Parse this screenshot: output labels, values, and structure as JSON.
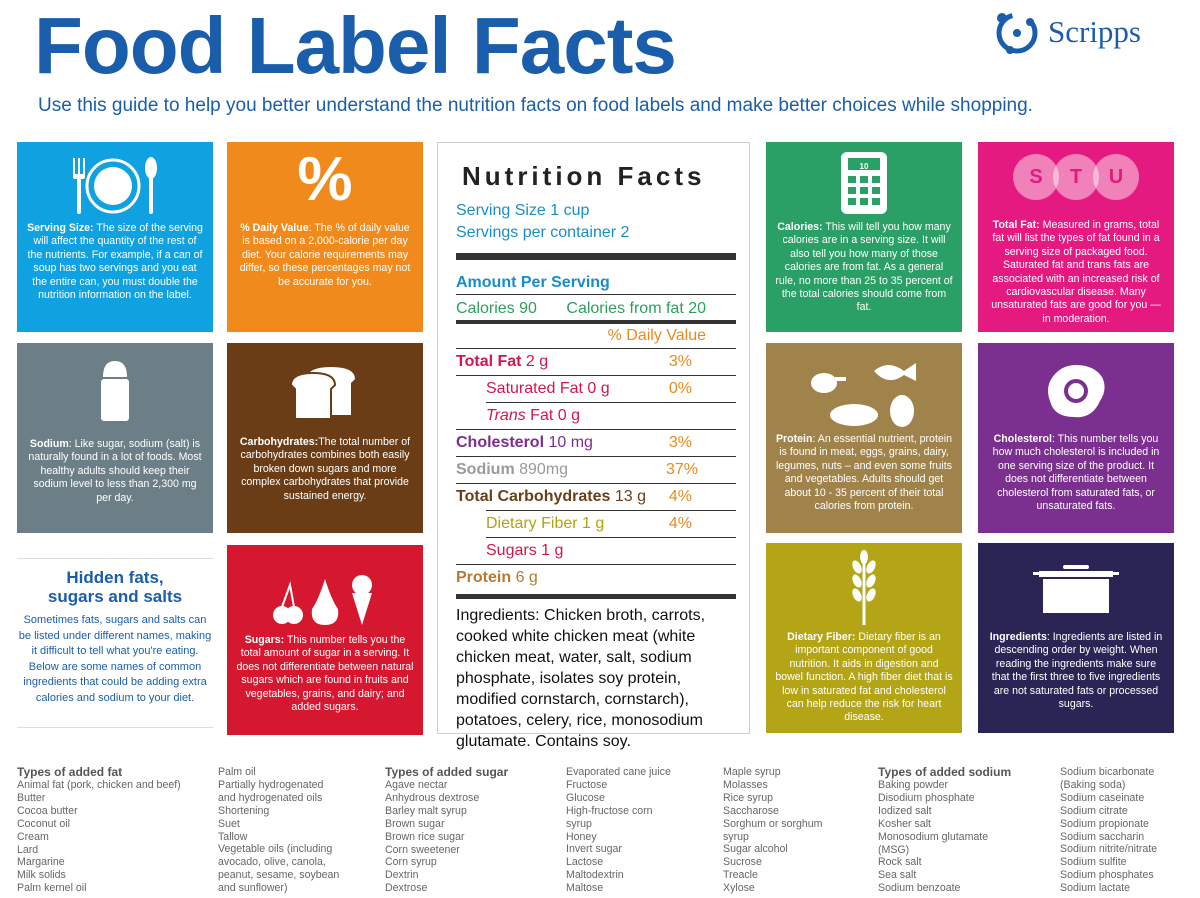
{
  "header": {
    "title": "Food Label Facts",
    "subtitle": "Use this guide to help you better understand the nutrition facts on food labels and make better choices while shopping.",
    "logo_text": "Scripps"
  },
  "colors": {
    "brand_blue": "#1a5eab",
    "serving": "#0fa1e0",
    "daily_value": "#f18a1c",
    "sodium": "#6d7f86",
    "carbs": "#6a3d16",
    "sugars": "#d5182f",
    "calories": "#2aa066",
    "total_fat": "#e41a80",
    "protein": "#a0834a",
    "cholesterol": "#7b2f8e",
    "fiber": "#b3a516",
    "ingredients": "#2b2556"
  },
  "cards": {
    "serving": {
      "icon": "plate-fork-spoon-icon",
      "heading": "Serving Size:",
      "body": " The size of the serving will affect the quantity of the rest of the nutrients. For example, if a can of soup has two servings and you eat the entire can, you must double the nutrition information on the label."
    },
    "daily_value": {
      "icon": "percent-icon",
      "icon_text": "%",
      "heading": "% Daily Value",
      "body": ": The % of daily value is based on a 2,000-calorie per day diet. Your calorie requirements may differ, so these percentages may not be accurate for you."
    },
    "sodium": {
      "icon": "salt-shaker-icon",
      "heading": "Sodium",
      "body": ": Like sugar, sodium (salt) is naturally found in a lot of foods. Most healthy adults should keep their sodium level to less than 2,300 mg per day."
    },
    "carbs": {
      "icon": "bread-icon",
      "heading": "Carbohydrates:",
      "body": "The total number of carbohydrates combines both easily broken down sugars and more complex carbohydrates that provide sustained energy."
    },
    "sugars": {
      "icon": "fruit-icecream-icon",
      "heading": "Sugars:",
      "body": " This number tells you the total amount of sugar in a serving. It does not differentiate between natural sugars which are found in fruits and vegetables, grains, and dairy; and added sugars."
    },
    "calories": {
      "icon": "calculator-icon",
      "icon_text": "10",
      "heading": "Calories:",
      "body": " This will tell you how many calories are in a serving size. It will also tell you how many of those calories are from fat. As a general rule, no more than 25 to 35 percent of the total calories should come from fat."
    },
    "total_fat": {
      "icon": "stu-circles-icon",
      "letters": [
        "S",
        "T",
        "U"
      ],
      "heading": "Total Fat:",
      "body": " Measured in grams, total fat will list the types of fat found in a serving size of packaged food. Saturated fat and trans fats are associated with an increased risk of cardiovascular disease. Many unsaturated fats are good for you — in moderation."
    },
    "protein": {
      "icon": "meat-fish-egg-icon",
      "heading": "Protein",
      "body": ": An essential nutrient, protein is found in meat, eggs, grains, dairy, legumes, nuts – and even some fruits and vegetables. Adults should get about 10 - 35 percent of their total calories from protein."
    },
    "cholesterol": {
      "icon": "fried-egg-icon",
      "heading": "Cholesterol",
      "body": ": This number tells you how much cholesterol is included in one serving size of the product. It does not differentiate between cholesterol from saturated fats, or unsaturated fats."
    },
    "fiber": {
      "icon": "wheat-icon",
      "heading": "Dietary Fiber:",
      "body": " Dietary fiber is an important component of good nutrition. It aids in digestion and bowel function. A high fiber diet that is low in saturated fat and cholesterol can help reduce the risk for heart disease."
    },
    "ingredients": {
      "icon": "cooking-pot-icon",
      "heading": "Ingredients",
      "body": ": Ingredients are listed in descending order by weight. When reading the ingredients make sure that the first three to five ingredients are not saturated fats or processed sugars."
    }
  },
  "nutrition": {
    "title": "Nutrition Facts",
    "serving_size": "Serving Size 1 cup",
    "servings_per_container": "Servings per container 2",
    "amount_per_serving": "Amount Per Serving",
    "calories_label": "Calories 90",
    "calories_fat_label": "Calories from fat 20",
    "daily_value_header": "% Daily Value",
    "rows": [
      {
        "label": "Total Fat",
        "amount": " 2 g",
        "dv": "3%"
      },
      {
        "label": "Saturated Fat",
        "amount": " 0 g",
        "dv": "0%"
      },
      {
        "label_italic": "Trans",
        "label": " Fat",
        "amount": " 0 g",
        "dv": ""
      },
      {
        "label": "Cholesterol",
        "amount": " 10 mg",
        "dv": "3%"
      },
      {
        "label": "Sodium",
        "amount": " 890mg",
        "dv": "37%"
      },
      {
        "label": "Total Carbohydrates",
        "amount": " 13 g",
        "dv": "4%"
      },
      {
        "label": "Dietary Fiber",
        "amount": " 1 g",
        "dv": "4%"
      },
      {
        "label": "Sugars",
        "amount": " 1 g",
        "dv": ""
      },
      {
        "label": "Protein",
        "amount": " 6 g",
        "dv": ""
      }
    ],
    "ingredients": "Ingredients: Chicken broth, carrots, cooked white chicken meat (white chicken meat, water, salt, sodium phosphate, isolates soy protein, modified cornstarch, cornstarch), potatoes, celery, rice, monosodium glutamate. Contains soy."
  },
  "hidden": {
    "title": "Hidden fats, sugars and salts",
    "body": "Sometimes fats, sugars and salts can be listed under different names, making it difficult to tell what you're eating. Below are some names of common ingredients that could be adding extra calories and sodium to your diet."
  },
  "lists": {
    "fat_title": "Types of added fat",
    "fat_col1": [
      "Animal fat (pork, chicken and beef)",
      "Butter",
      "Cocoa butter",
      "Coconut oil",
      "Cream",
      "Lard",
      "Margarine",
      "Milk solids",
      "Palm kernel oil"
    ],
    "fat_col2": [
      "Palm oil",
      "Partially hydrogenated",
      "and hydrogenated oils",
      "Shortening",
      "Suet",
      "Tallow",
      "Vegetable oils (including",
      "avocado, olive, canola,",
      "peanut, sesame, soybean",
      "and sunflower)"
    ],
    "sugar_title": "Types of added sugar",
    "sugar_col1": [
      "Agave nectar",
      "Anhydrous dextrose",
      "Barley malt syrup",
      "Brown sugar",
      "Brown rice sugar",
      "Corn sweetener",
      "Corn syrup",
      "Dextrin",
      "Dextrose"
    ],
    "sugar_col2": [
      "Evaporated cane juice",
      "Fructose",
      "Glucose",
      "High-fructose corn",
      "syrup",
      "Honey",
      "Invert sugar",
      "Lactose",
      "Maltodextrin",
      "Maltose"
    ],
    "sugar_col3": [
      "Maple syrup",
      "Molasses",
      "Rice syrup",
      "Saccharose",
      "Sorghum or sorghum",
      "syrup",
      "Sugar alcohol",
      "Sucrose",
      "Treacle",
      "Xylose"
    ],
    "sodium_title": "Types of added sodium",
    "sodium_col1": [
      "Baking powder",
      "Disodium phosphate",
      "Iodized salt",
      "Kosher salt",
      "Monosodium glutamate",
      "(MSG)",
      "Rock salt",
      "Sea salt",
      "Sodium benzoate"
    ],
    "sodium_col2": [
      "Sodium bicarbonate",
      "(Baking soda)",
      "Sodium caseinate",
      "Sodium citrate",
      "Sodium propionate",
      "Sodium saccharin",
      "Sodium nitrite/nitrate",
      "Sodium sulfite",
      "Sodium phosphates",
      "Sodium lactate"
    ]
  }
}
